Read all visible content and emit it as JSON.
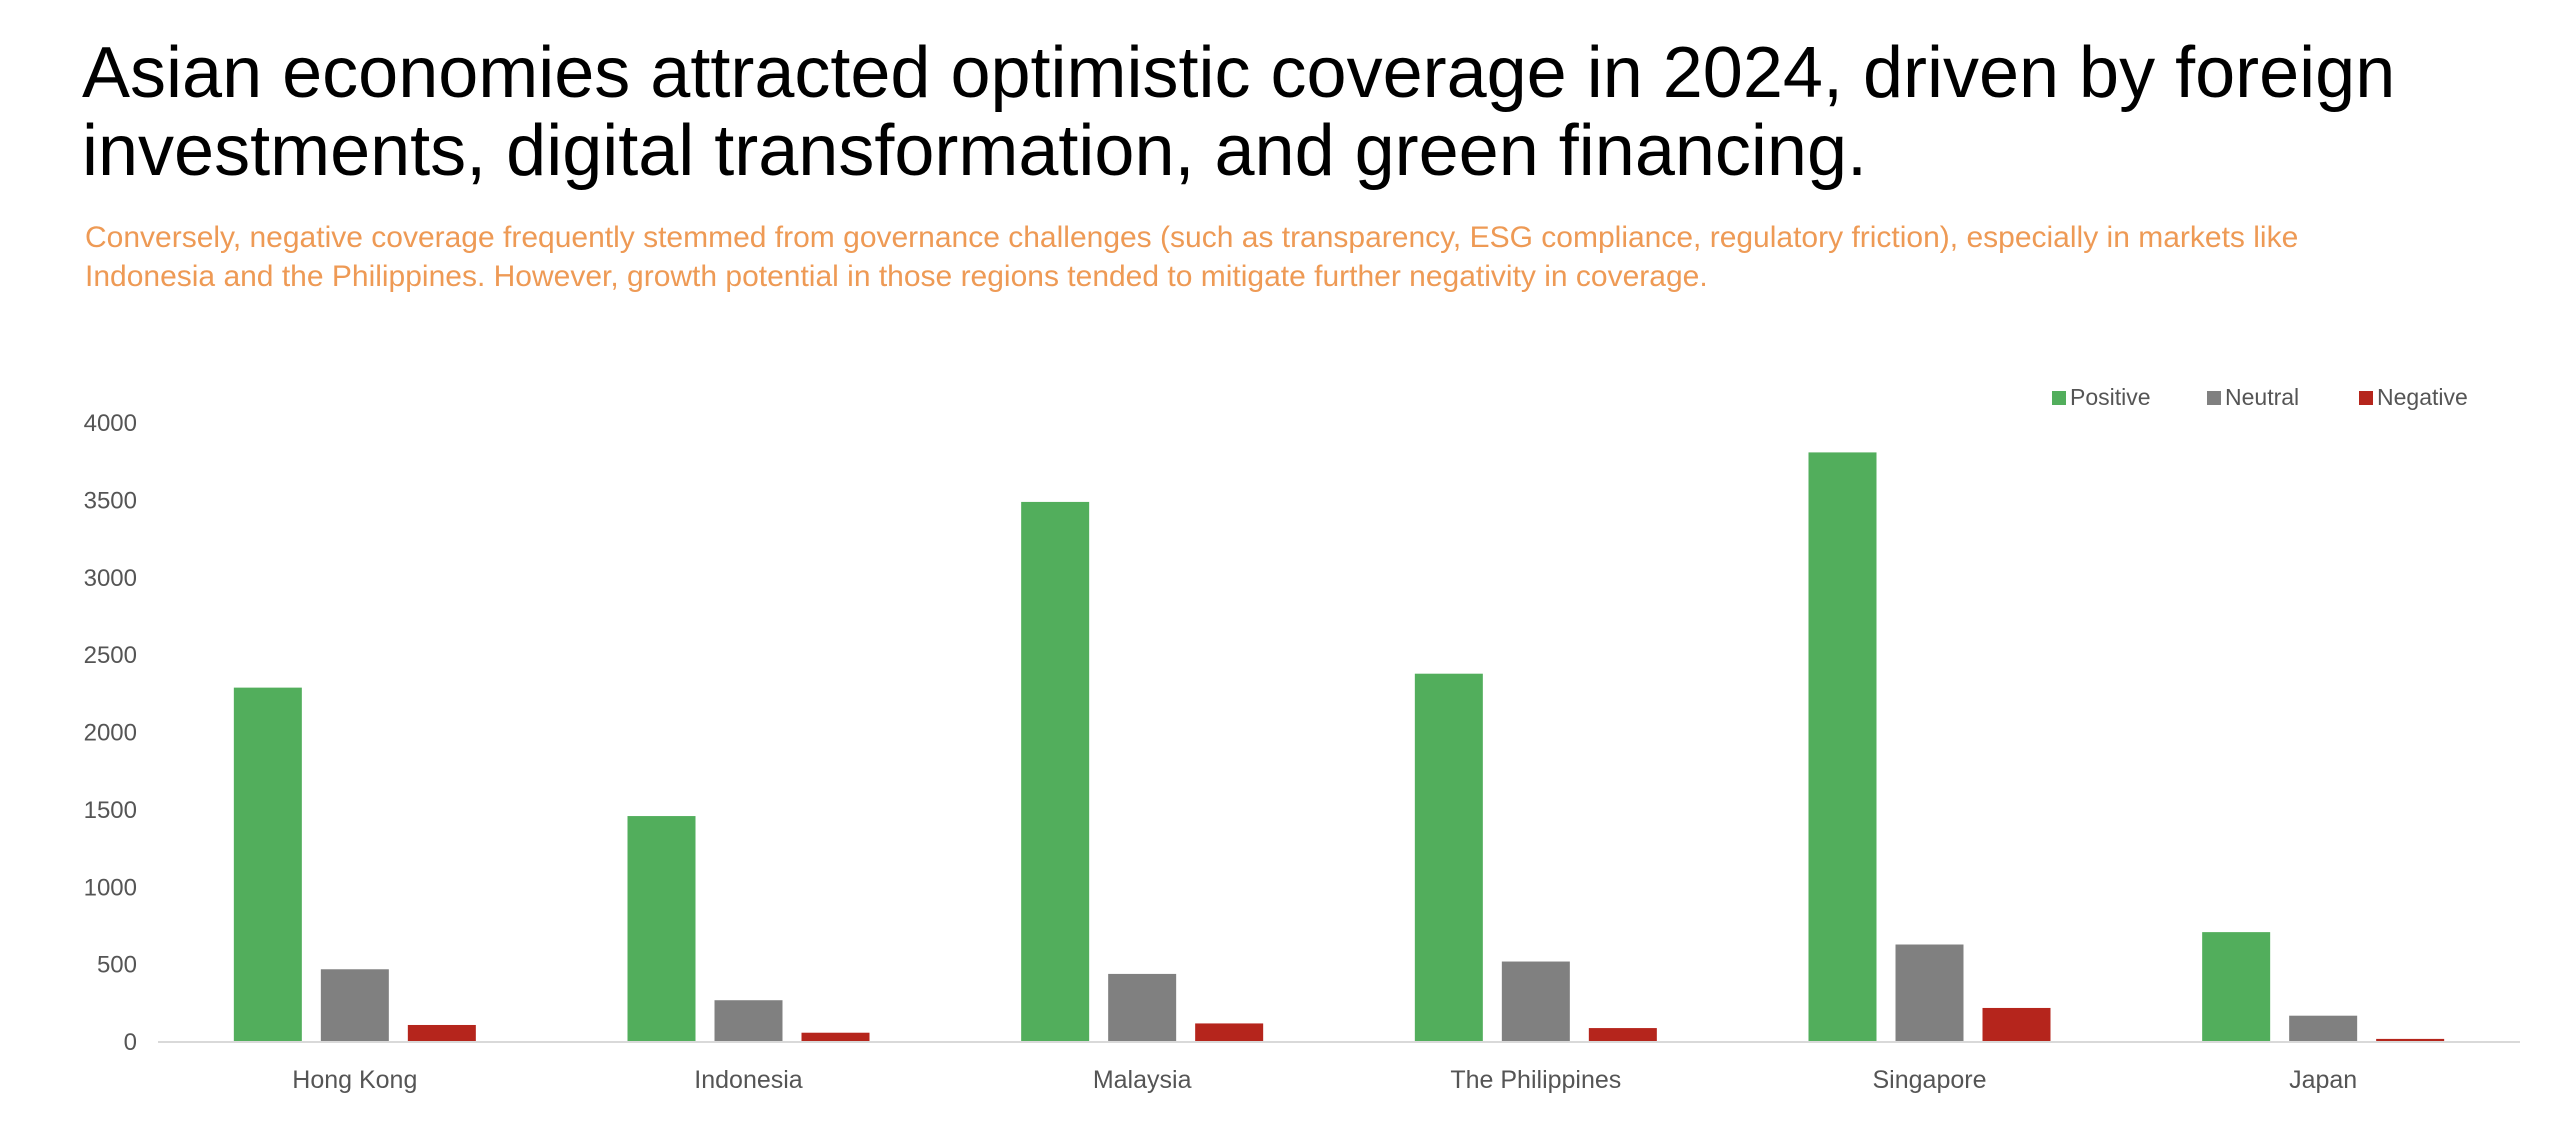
{
  "title": "Asian economies attracted optimistic coverage in 2024, driven by foreign investments, digital transformation, and green financing.",
  "subtitle": "Conversely, negative coverage frequently stemmed from governance challenges (such as transparency, ESG compliance, regulatory friction), especially in markets like Indonesia and the Philippines. However, growth potential in those regions tended to mitigate further negativity in coverage.",
  "colors": {
    "title": "#000000",
    "subtitle": "#ee9a55",
    "axis_text": "#555555",
    "baseline": "#d9d9d9"
  },
  "chart_data": {
    "type": "bar",
    "categories": [
      "Hong Kong",
      "Indonesia",
      "Malaysia",
      "The Philippines",
      "Singapore",
      "Japan"
    ],
    "series": [
      {
        "name": "Positive",
        "color": "#52ae5c",
        "values": [
          2290,
          1460,
          3490,
          2380,
          3810,
          710
        ]
      },
      {
        "name": "Neutral",
        "color": "#808080",
        "values": [
          470,
          270,
          440,
          520,
          630,
          170
        ]
      },
      {
        "name": "Negative",
        "color": "#b5251c",
        "values": [
          110,
          60,
          120,
          90,
          220,
          20
        ]
      }
    ],
    "ylim": [
      0,
      4000
    ],
    "yticks": [
      "0",
      "500",
      "1000",
      "1500",
      "2000",
      "2500",
      "3000",
      "3500",
      "4000"
    ],
    "xlabel": "",
    "ylabel": "",
    "legend_position": "top-right",
    "grid": false
  }
}
